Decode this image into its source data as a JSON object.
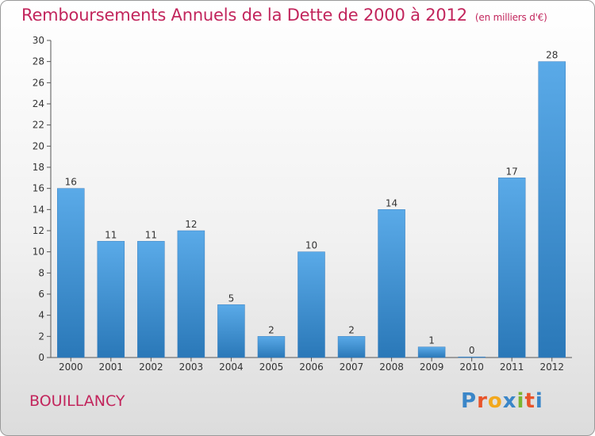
{
  "header": {
    "title": "Remboursements Annuels de la Dette de 2000 à 2012",
    "unit": "(en milliers d'€)"
  },
  "footer": {
    "town": "BOUILLANCY",
    "logo_letters": [
      "P",
      "r",
      "o",
      "x",
      "i",
      "t",
      "i"
    ],
    "logo_colors": [
      "#3a86c8",
      "#e8542a",
      "#f2a81d",
      "#3a86c8",
      "#7bb531",
      "#e8542a",
      "#3a86c8"
    ]
  },
  "chart_data": {
    "type": "bar",
    "categories": [
      "2000",
      "2001",
      "2002",
      "2003",
      "2004",
      "2005",
      "2006",
      "2007",
      "2008",
      "2009",
      "2010",
      "2011",
      "2012"
    ],
    "values": [
      16,
      11,
      11,
      12,
      5,
      2,
      10,
      2,
      14,
      1,
      0,
      17,
      28
    ],
    "ylim": [
      0,
      30
    ],
    "yticks": [
      0,
      2,
      4,
      6,
      8,
      10,
      12,
      14,
      16,
      18,
      20,
      22,
      24,
      26,
      28,
      30
    ],
    "grid": false,
    "bar_color_top": "#5aaae8",
    "bar_color_bottom": "#2a78b8"
  }
}
